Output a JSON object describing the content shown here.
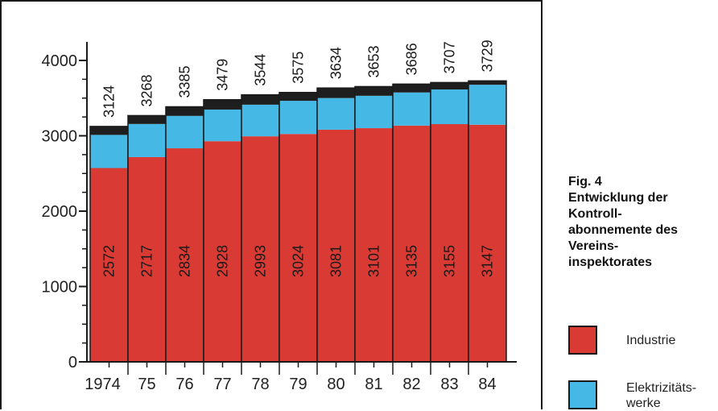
{
  "figure": {
    "caption_lines": [
      "Fig. 4",
      "Entwicklung der",
      "Kontroll-",
      "abonnemente des",
      "Vereins-",
      "inspektorates"
    ]
  },
  "legend": [
    {
      "label_lines": [
        "Industrie"
      ],
      "color": "#d93a34"
    },
    {
      "label_lines": [
        "Elektrizitäts-",
        "werke"
      ],
      "color": "#45b8e6"
    }
  ],
  "colors": {
    "industrie": "#d93a34",
    "elektrizitaetswerke": "#45b8e6",
    "other": "#1e1e1e"
  },
  "chart_data": {
    "type": "bar",
    "stacked": true,
    "categories": [
      "1974",
      "75",
      "76",
      "77",
      "78",
      "79",
      "80",
      "81",
      "82",
      "83",
      "84"
    ],
    "series": [
      {
        "name": "Industrie",
        "values": [
          2572,
          2717,
          2834,
          2928,
          2993,
          3024,
          3081,
          3101,
          3135,
          3155,
          3147
        ]
      },
      {
        "name": "Elektrizitätswerke",
        "values": [
          440,
          440,
          430,
          420,
          420,
          440,
          420,
          430,
          440,
          460,
          530
        ]
      },
      {
        "values": [
          112,
          111,
          121,
          131,
          131,
          111,
          133,
          122,
          111,
          92,
          52
        ]
      }
    ],
    "totals": [
      3124,
      3268,
      3385,
      3479,
      3544,
      3575,
      3634,
      3653,
      3686,
      3707,
      3729
    ],
    "yticks": [
      "0",
      "1000",
      "2000",
      "3000",
      "4000"
    ],
    "ylim": [
      0,
      4000
    ],
    "grid": false,
    "legend_position": "right"
  }
}
